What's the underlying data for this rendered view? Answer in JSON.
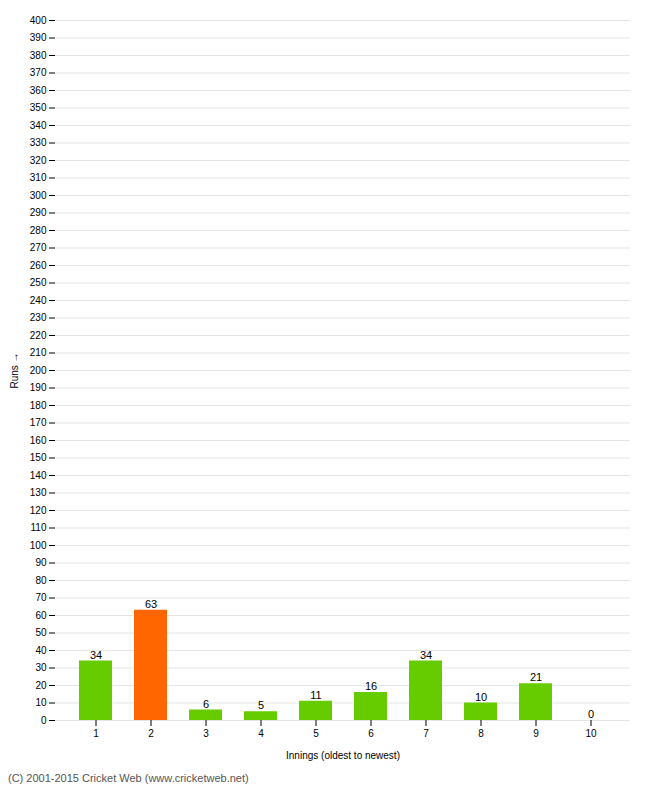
{
  "chart_data": {
    "type": "bar",
    "categories": [
      "1",
      "2",
      "3",
      "4",
      "5",
      "6",
      "7",
      "8",
      "9",
      "10"
    ],
    "values": [
      34,
      63,
      6,
      5,
      11,
      16,
      34,
      10,
      21,
      0
    ],
    "colors": [
      "#66cc00",
      "#ff6600",
      "#66cc00",
      "#66cc00",
      "#66cc00",
      "#66cc00",
      "#66cc00",
      "#66cc00",
      "#66cc00",
      "#66cc00"
    ],
    "xlabel": "Innings (oldest to newest)",
    "ylabel": "Runs",
    "ylim": [
      0,
      400
    ],
    "yticks": [
      0,
      10,
      20,
      30,
      40,
      50,
      60,
      70,
      80,
      90,
      100,
      110,
      120,
      130,
      140,
      150,
      160,
      170,
      180,
      190,
      200,
      210,
      220,
      230,
      240,
      250,
      260,
      270,
      280,
      290,
      300,
      310,
      320,
      330,
      340,
      350,
      360,
      370,
      380,
      390,
      400
    ],
    "grid": true,
    "data_labels": true,
    "caption": "(C) 2001-2015 Cricket Web (www.cricketweb.net)"
  }
}
